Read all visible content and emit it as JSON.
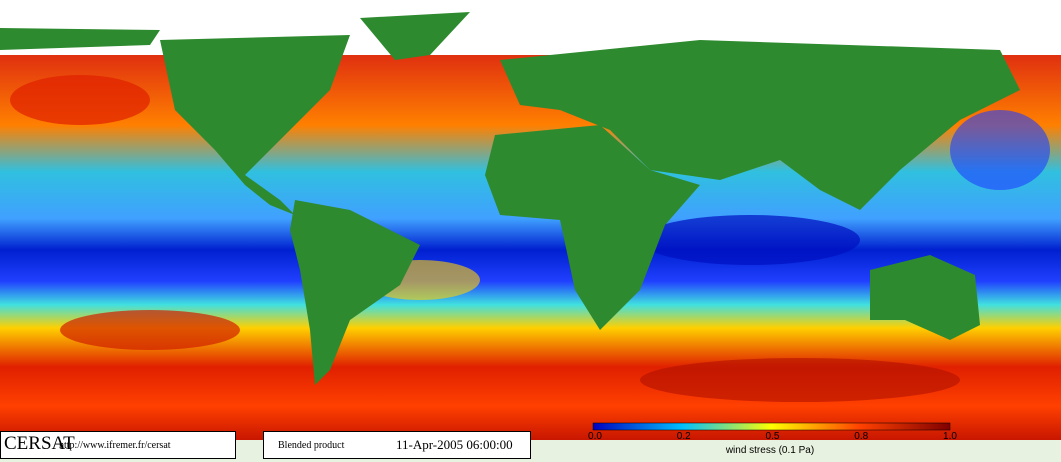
{
  "footer": {
    "logo": "CERSAT",
    "url": "http://www.ifremer.fr/cersat",
    "product": "Blended product",
    "date": "11-Apr-2005 06:00:00"
  },
  "colorbar": {
    "label": "wind stress (0.1 Pa)",
    "ticks": [
      "0.0",
      "0.2",
      "0.5",
      "0.8",
      "1.0"
    ]
  }
}
